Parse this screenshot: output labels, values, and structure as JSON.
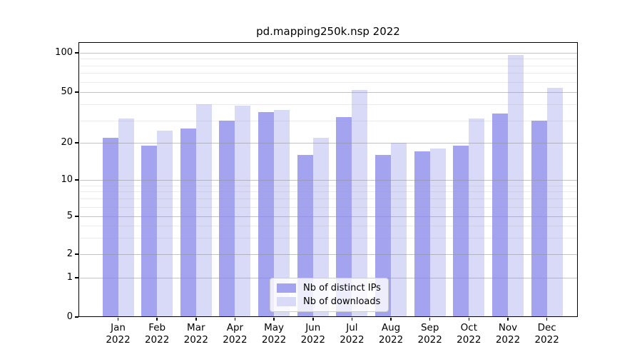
{
  "title": "pd.mapping250k.nsp 2022",
  "colors": {
    "distinct_ips": "#a3a3f0",
    "downloads": "#d9d9f8",
    "grid_major": "rgba(145,145,145,0.55)",
    "grid_minor": "rgba(160,160,160,0.20)",
    "spine": "#000000",
    "legend_bg": "rgba(255,255,255,0.8)",
    "legend_border": "#cccccc"
  },
  "legend": {
    "items": [
      {
        "label": "Nb of distinct IPs",
        "series": "distinct_ips"
      },
      {
        "label": "Nb of downloads",
        "series": "downloads"
      }
    ],
    "position": "lower center"
  },
  "x_axis": {
    "months": [
      "Jan",
      "Feb",
      "Mar",
      "Apr",
      "May",
      "Jun",
      "Jul",
      "Aug",
      "Sep",
      "Oct",
      "Nov",
      "Dec"
    ],
    "year": "2022"
  },
  "y_axis": {
    "major_ticks": [
      100,
      50,
      20,
      10,
      5,
      2,
      1,
      0
    ],
    "minor_gridlines": [
      90,
      80,
      70,
      60,
      40,
      30,
      9,
      8,
      7,
      6,
      4,
      3
    ],
    "scale": "symlog"
  },
  "chart_data": {
    "type": "bar",
    "title": "pd.mapping250k.nsp 2022",
    "categories": [
      "Jan 2022",
      "Feb 2022",
      "Mar 2022",
      "Apr 2022",
      "May 2022",
      "Jun 2022",
      "Jul 2022",
      "Aug 2022",
      "Sep 2022",
      "Oct 2022",
      "Nov 2022",
      "Dec 2022"
    ],
    "series": [
      {
        "name": "Nb of distinct IPs",
        "color": "#a3a3f0",
        "values": [
          22,
          19,
          26,
          30,
          35,
          16,
          32,
          16,
          17,
          19,
          34,
          30
        ]
      },
      {
        "name": "Nb of downloads",
        "color": "#d9d9f8",
        "values": [
          31,
          25,
          40,
          39,
          36,
          22,
          52,
          20,
          18,
          31,
          96,
          54
        ]
      }
    ],
    "xlabel": "",
    "ylabel": "",
    "yticks": [
      100,
      50,
      20,
      10,
      5,
      2,
      1,
      0
    ],
    "ylim": [
      0,
      130
    ],
    "yscale": "symlog",
    "grid": true,
    "legend_position": "lower center"
  }
}
